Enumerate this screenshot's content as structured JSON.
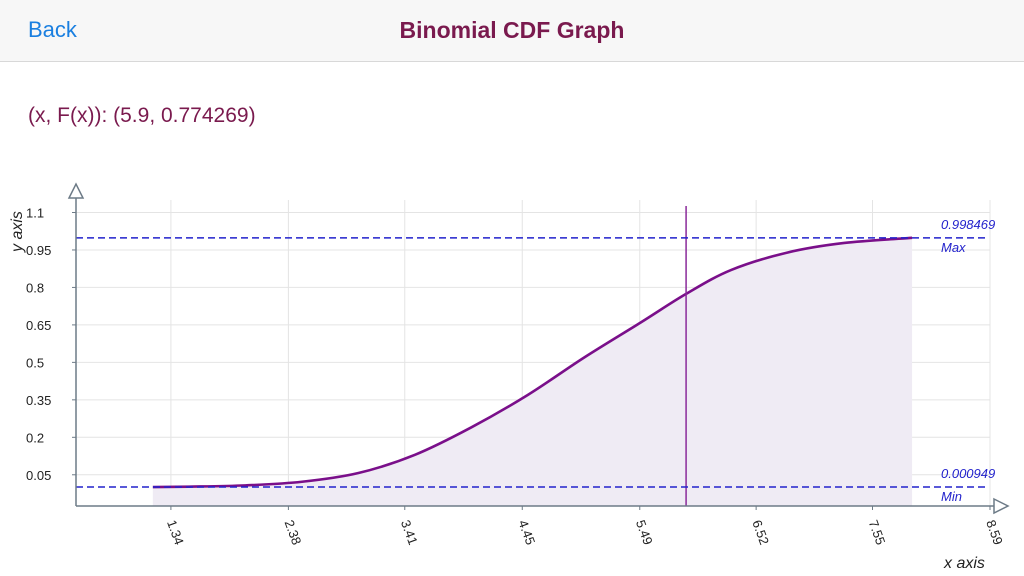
{
  "navbar": {
    "back_label": "Back",
    "title": "Binomial CDF Graph"
  },
  "readout": "(x, F(x)): (5.9, 0.774269)",
  "colors": {
    "accent": "#1a7fe0",
    "title": "#7a1a4e",
    "curve": "#7a0f8a",
    "cursor": "#8a2a9a",
    "fill": "#efebf4",
    "reference": "#2222cc",
    "grid": "#e4e4e4",
    "axis": "#6d7b87"
  },
  "chart_data": {
    "type": "area",
    "xlabel": "x axis",
    "ylabel": "y axis",
    "xlim": [
      0.5,
      8.59
    ],
    "ylim": [
      -0.075,
      1.15
    ],
    "x_ticks": [
      "1.34",
      "2.38",
      "3.41",
      "4.45",
      "5.49",
      "6.52",
      "7.55",
      "8.59"
    ],
    "y_ticks": [
      "0.05",
      "0.2",
      "0.35",
      "0.5",
      "0.65",
      "0.8",
      "0.95",
      "1.1"
    ],
    "grid": true,
    "domain": [
      1.18,
      7.9
    ],
    "series": [
      {
        "x": [
          1.18,
          1.5,
          2.0,
          2.5,
          3.0,
          3.5,
          4.0,
          4.5,
          5.0,
          5.5,
          5.9,
          6.3,
          6.8,
          7.3,
          7.9
        ],
        "y": [
          0.0009,
          0.0025,
          0.0076,
          0.022,
          0.057,
          0.13,
          0.24,
          0.37,
          0.52,
          0.66,
          0.774,
          0.87,
          0.94,
          0.978,
          0.9985
        ]
      }
    ],
    "cursor": {
      "x": 5.9,
      "y": 0.774269
    },
    "reference_lines": [
      {
        "value": 0.998469,
        "value_label": "0.998469",
        "label": "Max"
      },
      {
        "value": 0.000949,
        "value_label": "0.000949",
        "label": "Min"
      }
    ]
  }
}
